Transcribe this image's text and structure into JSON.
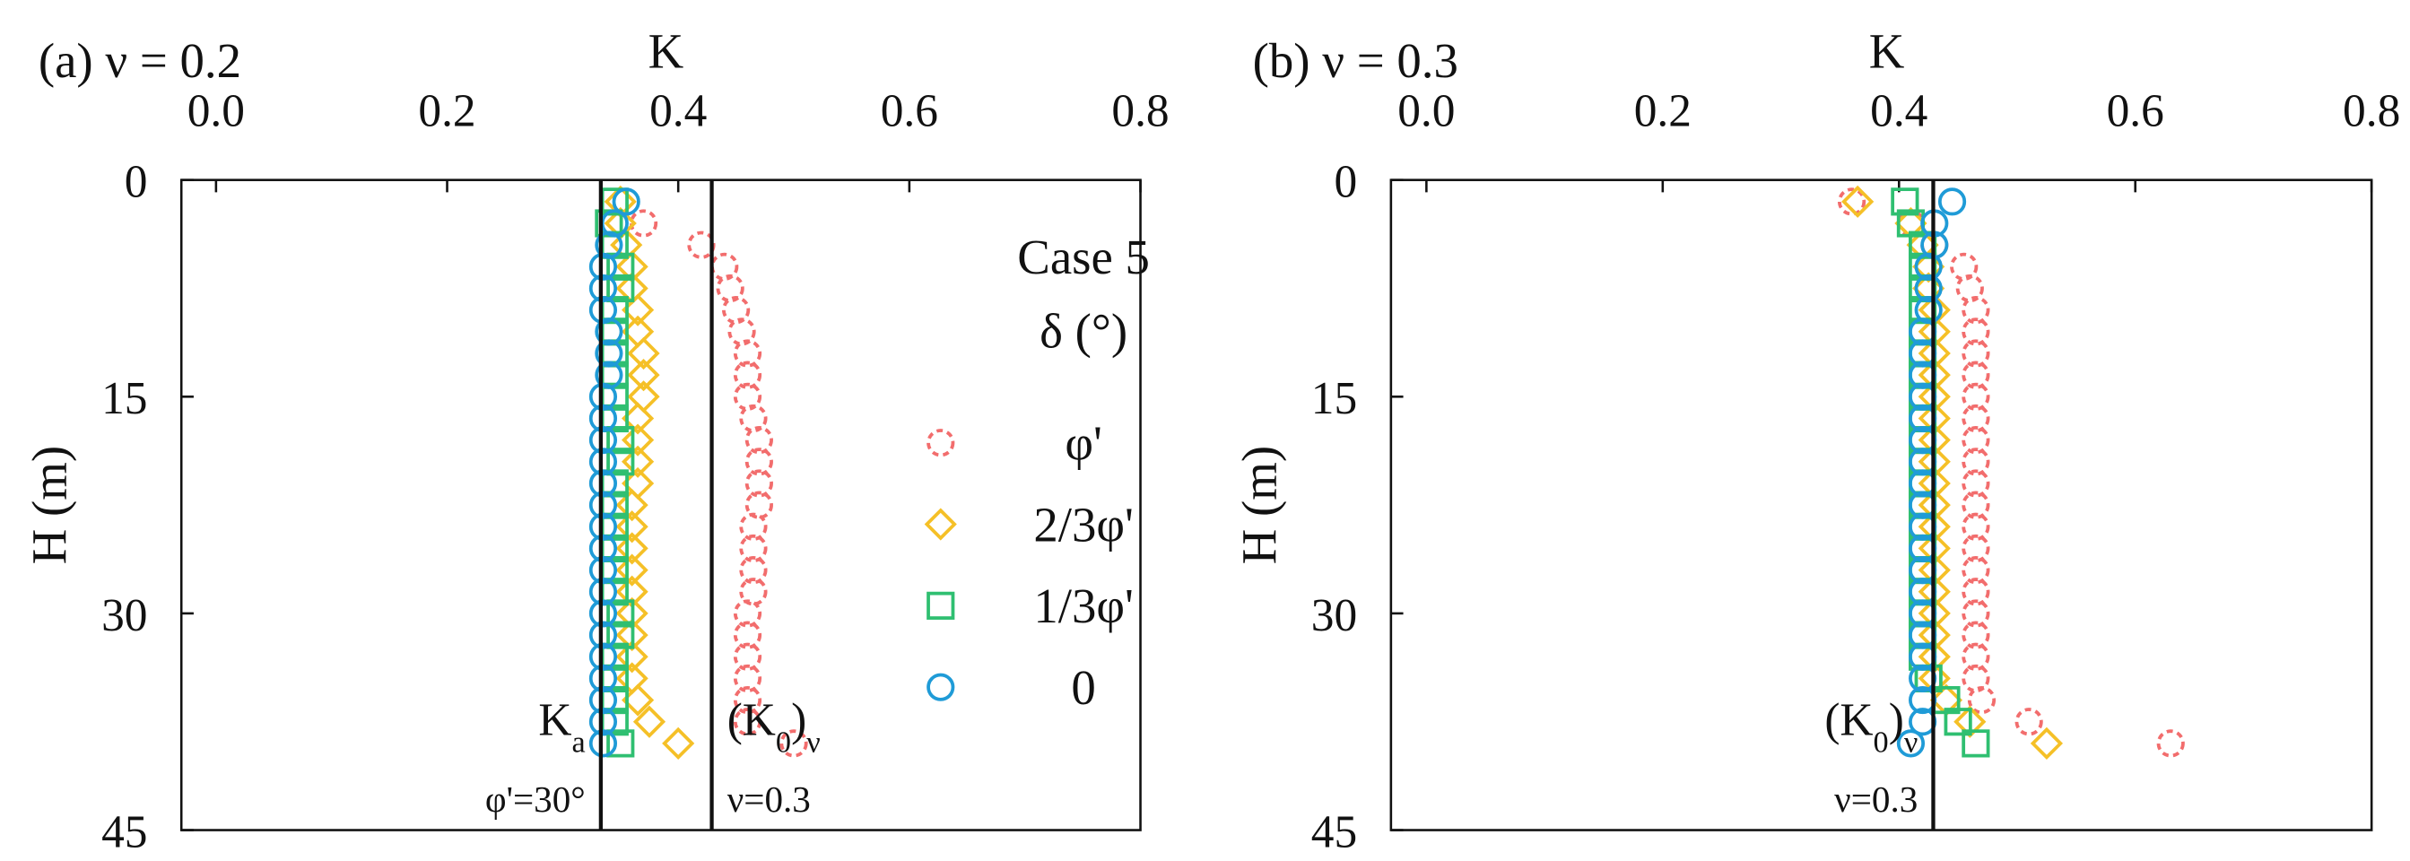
{
  "chart_data": [
    {
      "type": "scatter",
      "panel_label": "(a) ν = 0.2",
      "xlabel": "K",
      "ylabel": "H (m)",
      "x_axis_position": "top",
      "y_inverted": true,
      "xlim": [
        -0.03,
        0.8
      ],
      "ylim": [
        0,
        45
      ],
      "xticks": [
        {
          "value": 0,
          "label": "0.0"
        },
        {
          "value": 0.2,
          "label": "0.2"
        },
        {
          "value": 0.4,
          "label": "0.4"
        },
        {
          "value": 0.6,
          "label": "0.6"
        },
        {
          "value": 0.8,
          "label": "0.8"
        }
      ],
      "yticks": [
        0,
        15,
        30,
        45
      ],
      "y": [
        1.5,
        3,
        4.5,
        6,
        7.5,
        9,
        10.5,
        12,
        13.5,
        15,
        16.5,
        18,
        19.5,
        21,
        22.5,
        24,
        25.5,
        27,
        28.5,
        30,
        31.5,
        33,
        34.5,
        36,
        37.5,
        39
      ],
      "legend": "center-right",
      "legend_title": [
        "Case 5",
        "δ (°)"
      ],
      "series": [
        {
          "name": "φ'",
          "color": "#f26d6d",
          "marker": "circle",
          "dashed": true,
          "values": [
            null,
            0.37,
            0.42,
            0.44,
            0.445,
            0.45,
            0.455,
            0.46,
            0.46,
            0.46,
            0.465,
            0.47,
            0.47,
            0.47,
            0.47,
            0.465,
            0.465,
            0.465,
            0.465,
            0.46,
            0.46,
            0.46,
            0.46,
            0.46,
            0.46,
            0.5
          ]
        },
        {
          "name": "2/3φ'",
          "color": "#f5c027",
          "marker": "diamond",
          "dashed": false,
          "values": [
            0.35,
            0.35,
            0.355,
            0.36,
            0.36,
            0.365,
            0.365,
            0.37,
            0.37,
            0.37,
            0.365,
            0.365,
            0.365,
            0.365,
            0.36,
            0.36,
            0.36,
            0.36,
            0.36,
            0.36,
            0.36,
            0.36,
            0.36,
            0.365,
            0.375,
            0.4
          ]
        },
        {
          "name": "1/3φ'",
          "color": "#2fbf71",
          "marker": "square",
          "dashed": false,
          "values": [
            0.345,
            0.34,
            0.345,
            0.35,
            0.35,
            0.345,
            0.345,
            0.345,
            0.345,
            0.345,
            0.345,
            0.35,
            0.35,
            0.345,
            0.345,
            0.345,
            0.345,
            0.345,
            0.345,
            0.35,
            0.35,
            0.345,
            0.345,
            0.345,
            0.345,
            0.35
          ]
        },
        {
          "name": "0",
          "color": "#1f9bd7",
          "marker": "circle",
          "dashed": false,
          "values": [
            0.355,
            0.345,
            0.34,
            0.335,
            0.335,
            0.335,
            0.34,
            0.34,
            0.34,
            0.335,
            0.335,
            0.335,
            0.335,
            0.335,
            0.335,
            0.335,
            0.335,
            0.335,
            0.335,
            0.335,
            0.335,
            0.335,
            0.335,
            0.335,
            0.335,
            0.335
          ]
        }
      ],
      "reference_lines": [
        {
          "value": 0.333,
          "side": "left",
          "label": [
            {
              "t": "K"
            },
            {
              "t": "a",
              "sub": true
            }
          ],
          "note": "φ'=30°"
        },
        {
          "value": 0.429,
          "side": "right",
          "label": [
            {
              "t": "(K"
            },
            {
              "t": "0",
              "sub": true
            },
            {
              "t": ")"
            },
            {
              "t": "ν",
              "sub": true
            }
          ],
          "note": "ν=0.3"
        }
      ]
    },
    {
      "type": "scatter",
      "panel_label": "(b) ν = 0.3",
      "xlabel": "K",
      "ylabel": "H (m)",
      "x_axis_position": "top",
      "y_inverted": true,
      "xlim": [
        -0.03,
        0.8
      ],
      "ylim": [
        0,
        45
      ],
      "xticks": [
        {
          "value": 0,
          "label": "0.0"
        },
        {
          "value": 0.2,
          "label": "0.2"
        },
        {
          "value": 0.4,
          "label": "0.4"
        },
        {
          "value": 0.6,
          "label": "0.6"
        },
        {
          "value": 0.8,
          "label": "0.8"
        }
      ],
      "yticks": [
        0,
        15,
        30,
        45
      ],
      "y": [
        1.5,
        3,
        4.5,
        6,
        7.5,
        9,
        10.5,
        12,
        13.5,
        15,
        16.5,
        18,
        19.5,
        21,
        22.5,
        24,
        25.5,
        27,
        28.5,
        30,
        31.5,
        33,
        34.5,
        36,
        37.5,
        39
      ],
      "series": [
        {
          "color": "#f26d6d",
          "marker": "circle",
          "dashed": true,
          "values": [
            0.36,
            0.41,
            0.43,
            0.455,
            0.46,
            0.465,
            0.465,
            0.465,
            0.465,
            0.465,
            0.465,
            0.465,
            0.465,
            0.465,
            0.465,
            0.465,
            0.465,
            0.465,
            0.465,
            0.465,
            0.465,
            0.465,
            0.465,
            0.47,
            0.51,
            0.63
          ]
        },
        {
          "color": "#f5c027",
          "marker": "diamond",
          "dashed": false,
          "values": [
            0.365,
            0.41,
            0.42,
            0.425,
            0.425,
            0.43,
            0.43,
            0.43,
            0.43,
            0.43,
            0.43,
            0.43,
            0.43,
            0.43,
            0.43,
            0.43,
            0.43,
            0.43,
            0.43,
            0.43,
            0.43,
            0.43,
            0.43,
            0.44,
            0.46,
            0.525
          ]
        },
        {
          "color": "#2fbf71",
          "marker": "square",
          "dashed": false,
          "values": [
            0.405,
            0.41,
            0.42,
            0.42,
            0.42,
            0.42,
            0.42,
            0.42,
            0.42,
            0.42,
            0.42,
            0.42,
            0.42,
            0.42,
            0.42,
            0.42,
            0.42,
            0.42,
            0.42,
            0.42,
            0.42,
            0.42,
            0.425,
            0.44,
            0.45,
            0.465
          ]
        },
        {
          "color": "#1f9bd7",
          "marker": "circle",
          "dashed": false,
          "values": [
            0.445,
            0.43,
            0.43,
            0.425,
            0.425,
            0.425,
            0.42,
            0.42,
            0.42,
            0.42,
            0.42,
            0.42,
            0.42,
            0.42,
            0.42,
            0.42,
            0.42,
            0.42,
            0.42,
            0.42,
            0.42,
            0.42,
            0.42,
            0.42,
            0.42,
            0.41
          ]
        }
      ],
      "reference_lines": [
        {
          "value": 0.429,
          "side": "left",
          "label": [
            {
              "t": "(K"
            },
            {
              "t": "0",
              "sub": true
            },
            {
              "t": ")"
            },
            {
              "t": "ν",
              "sub": true
            }
          ],
          "note": "ν=0.3"
        }
      ]
    }
  ]
}
